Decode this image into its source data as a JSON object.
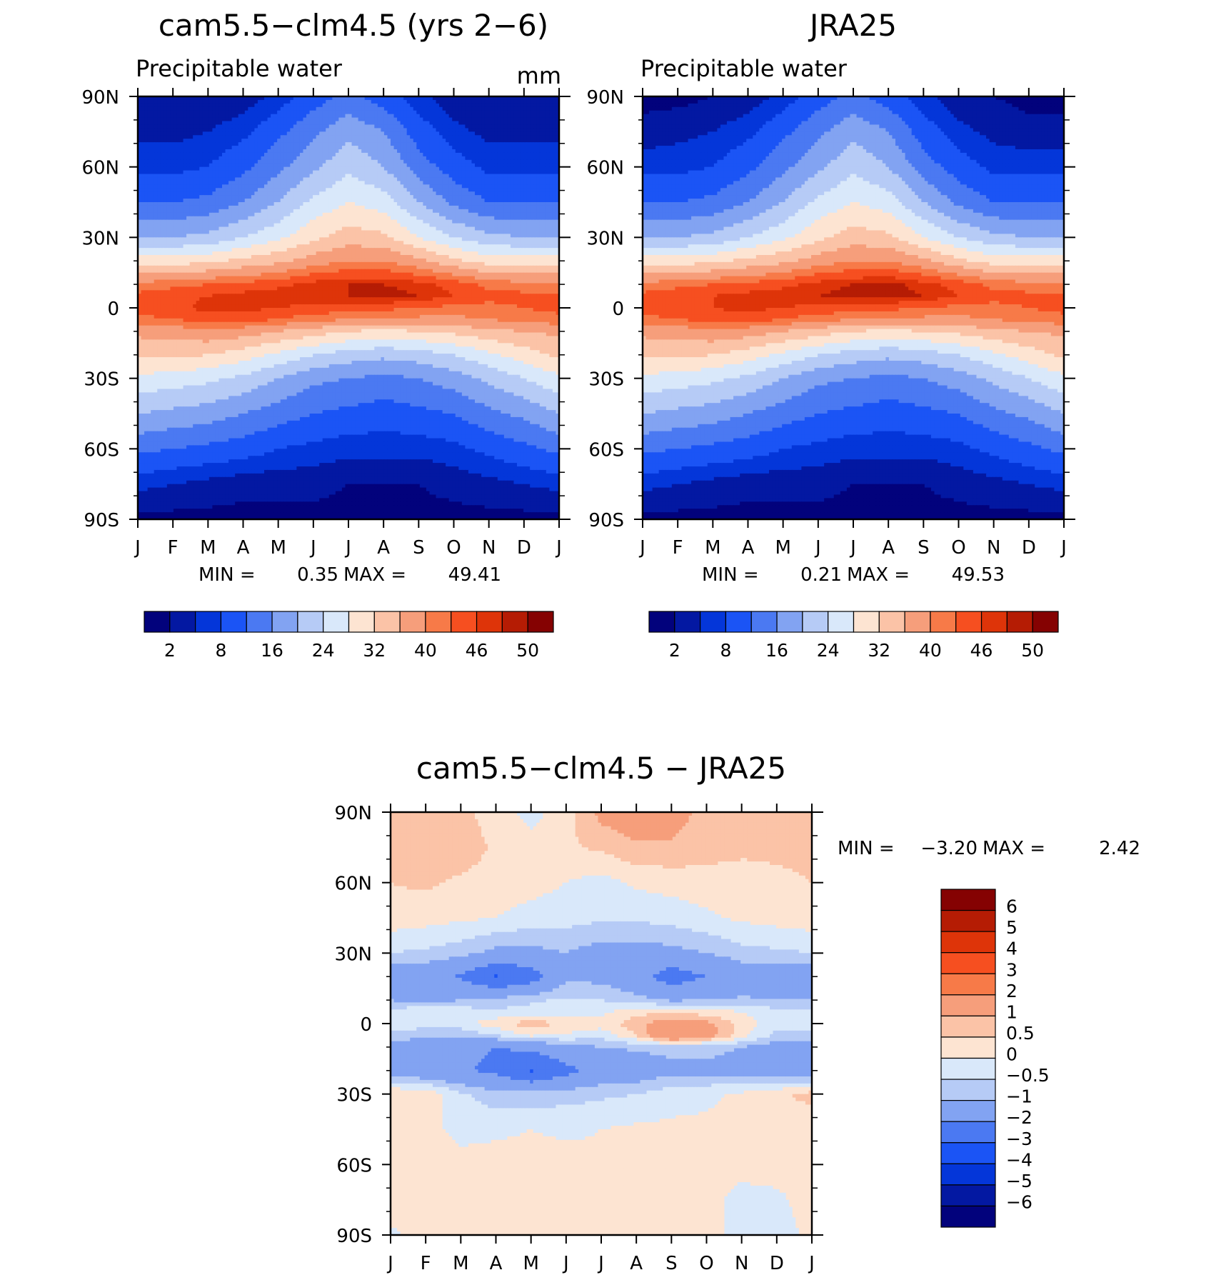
{
  "chart_data": [
    {
      "type": "heatmap",
      "title": "cam5.5−clm4.5 (yrs 2−6)",
      "subtitle": "Precipitable water",
      "units": "mm",
      "x_categories": [
        "J",
        "F",
        "M",
        "A",
        "M",
        "J",
        "J",
        "A",
        "S",
        "O",
        "N",
        "D",
        "J"
      ],
      "y_ticks": [
        "90N",
        "60N",
        "30N",
        "0",
        "30S",
        "60S",
        "90S"
      ],
      "latitudes": [
        90,
        75,
        60,
        45,
        30,
        20,
        10,
        5,
        0,
        -5,
        -10,
        -20,
        -30,
        -45,
        -60,
        -75,
        -90
      ],
      "values": [
        [
          2,
          2,
          2,
          3,
          6,
          10,
          13,
          10,
          6,
          3,
          2,
          2,
          2
        ],
        [
          4,
          4,
          5,
          7,
          11,
          15,
          19,
          16,
          10,
          6,
          4,
          4,
          4
        ],
        [
          7,
          7,
          8,
          11,
          15,
          19,
          23,
          20,
          14,
          10,
          7,
          7,
          7
        ],
        [
          12,
          12,
          13,
          16,
          20,
          25,
          28,
          26,
          20,
          15,
          12,
          12,
          12
        ],
        [
          20,
          20,
          21,
          24,
          27,
          31,
          34,
          33,
          28,
          24,
          21,
          20,
          20
        ],
        [
          30,
          30,
          31,
          33,
          35,
          38,
          40,
          40,
          37,
          33,
          30,
          30,
          30
        ],
        [
          41,
          42,
          43,
          44,
          45,
          47,
          48,
          48,
          47,
          45,
          42,
          41,
          41
        ],
        [
          44,
          45,
          46,
          47,
          48,
          48,
          48,
          49,
          48,
          46,
          44,
          44,
          44
        ],
        [
          44,
          45,
          47,
          47,
          46,
          45,
          45,
          44,
          43,
          42,
          42,
          43,
          44
        ],
        [
          42,
          43,
          44,
          44,
          43,
          41,
          40,
          39,
          39,
          39,
          40,
          41,
          42
        ],
        [
          37,
          38,
          39,
          38,
          36,
          34,
          32,
          31,
          32,
          33,
          35,
          36,
          37
        ],
        [
          33,
          33,
          32,
          30,
          27,
          24,
          22,
          21,
          22,
          24,
          27,
          30,
          33
        ],
        [
          27,
          26,
          25,
          23,
          20,
          17,
          16,
          15,
          16,
          18,
          21,
          24,
          27
        ],
        [
          20,
          19,
          18,
          16,
          14,
          12,
          11,
          10,
          11,
          12,
          15,
          17,
          20
        ],
        [
          13,
          12,
          11,
          10,
          8,
          7,
          6,
          6,
          6,
          7,
          9,
          11,
          13
        ],
        [
          6,
          5,
          4,
          3,
          3,
          3,
          2,
          2,
          2,
          3,
          4,
          5,
          6
        ],
        [
          1,
          1,
          1,
          1,
          1,
          1,
          1,
          1,
          1,
          1,
          1,
          1,
          1
        ]
      ],
      "stats": {
        "min_label": "MIN =",
        "min": "0.35",
        "max_label": "MAX =",
        "max": "49.41"
      },
      "colorbar_labels": [
        "2",
        "8",
        "16",
        "24",
        "32",
        "40",
        "46",
        "50"
      ]
    },
    {
      "type": "heatmap",
      "title": "JRA25",
      "subtitle": "Precipitable water",
      "x_categories": [
        "J",
        "F",
        "M",
        "A",
        "M",
        "J",
        "J",
        "A",
        "S",
        "O",
        "N",
        "D",
        "J"
      ],
      "y_ticks": [
        "90N",
        "60N",
        "30N",
        "0",
        "30S",
        "60S",
        "90S"
      ],
      "latitudes": [
        90,
        75,
        60,
        45,
        30,
        20,
        10,
        5,
        0,
        -5,
        -10,
        -20,
        -30,
        -45,
        -60,
        -75,
        -90
      ],
      "values": [
        [
          1,
          1,
          2,
          3,
          6,
          10,
          13,
          10,
          6,
          3,
          2,
          1,
          1
        ],
        [
          3,
          4,
          5,
          7,
          11,
          15,
          19,
          16,
          10,
          6,
          4,
          3,
          3
        ],
        [
          7,
          7,
          8,
          11,
          15,
          19,
          23,
          20,
          14,
          10,
          7,
          7,
          7
        ],
        [
          12,
          12,
          13,
          16,
          20,
          25,
          28,
          26,
          20,
          15,
          12,
          12,
          12
        ],
        [
          20,
          20,
          21,
          24,
          27,
          31,
          34,
          33,
          28,
          24,
          21,
          20,
          20
        ],
        [
          30,
          30,
          31,
          33,
          35,
          38,
          40,
          40,
          37,
          33,
          30,
          30,
          30
        ],
        [
          41,
          42,
          43,
          44,
          45,
          47,
          48,
          49,
          47,
          45,
          42,
          41,
          41
        ],
        [
          44,
          45,
          46,
          47,
          48,
          48,
          49,
          49,
          48,
          46,
          44,
          44,
          44
        ],
        [
          44,
          45,
          46,
          47,
          46,
          45,
          45,
          44,
          43,
          42,
          42,
          43,
          44
        ],
        [
          42,
          43,
          44,
          44,
          43,
          41,
          40,
          39,
          39,
          39,
          40,
          41,
          42
        ],
        [
          37,
          38,
          39,
          38,
          36,
          34,
          32,
          31,
          32,
          33,
          35,
          36,
          37
        ],
        [
          33,
          33,
          32,
          30,
          27,
          24,
          22,
          21,
          22,
          24,
          27,
          30,
          33
        ],
        [
          27,
          26,
          25,
          23,
          20,
          17,
          16,
          15,
          16,
          18,
          21,
          24,
          27
        ],
        [
          20,
          19,
          18,
          16,
          14,
          12,
          11,
          10,
          11,
          12,
          15,
          17,
          20
        ],
        [
          13,
          12,
          11,
          10,
          8,
          7,
          6,
          6,
          6,
          7,
          9,
          11,
          13
        ],
        [
          6,
          5,
          4,
          3,
          3,
          3,
          2,
          2,
          2,
          3,
          4,
          5,
          6
        ],
        [
          1,
          1,
          1,
          1,
          1,
          1,
          1,
          1,
          1,
          1,
          1,
          1,
          1
        ]
      ],
      "stats": {
        "min_label": "MIN =",
        "min": "0.21",
        "max_label": "MAX =",
        "max": "49.53"
      },
      "colorbar_labels": [
        "2",
        "8",
        "16",
        "24",
        "32",
        "40",
        "46",
        "50"
      ]
    },
    {
      "type": "heatmap",
      "title": "cam5.5−clm4.5 − JRA25",
      "x_categories": [
        "J",
        "F",
        "M",
        "A",
        "M",
        "J",
        "J",
        "A",
        "S",
        "O",
        "N",
        "D",
        "J"
      ],
      "y_ticks": [
        "90N",
        "60N",
        "30N",
        "0",
        "30S",
        "60S",
        "90S"
      ],
      "latitudes": [
        90,
        75,
        60,
        45,
        30,
        20,
        10,
        5,
        0,
        -5,
        -10,
        -20,
        -30,
        -45,
        -60,
        -75,
        -90
      ],
      "values": [
        [
          0.7,
          0.8,
          0.6,
          0.3,
          -0.2,
          0.3,
          1.2,
          1.5,
          1.3,
          0.8,
          0.6,
          0.7,
          0.7
        ],
        [
          0.6,
          0.8,
          0.8,
          0.4,
          0.2,
          0.4,
          0.6,
          0.9,
          0.9,
          0.7,
          0.6,
          0.6,
          0.6
        ],
        [
          0.5,
          0.6,
          0.4,
          0.3,
          0.2,
          0,
          -0.2,
          0.1,
          0.2,
          0.3,
          0.3,
          0.4,
          0.5
        ],
        [
          0.3,
          0.2,
          0.1,
          0,
          -0.2,
          -0.3,
          -0.4,
          -0.4,
          -0.3,
          -0.1,
          0.1,
          0.2,
          0.3
        ],
        [
          -0.5,
          -0.6,
          -0.8,
          -1.2,
          -1.2,
          -1.0,
          -1.3,
          -1.3,
          -1.2,
          -1.0,
          -0.7,
          -0.6,
          -0.5
        ],
        [
          -1.5,
          -1.6,
          -2.1,
          -3.1,
          -2.5,
          -1.2,
          -1.2,
          -1.6,
          -2.5,
          -2.0,
          -1.5,
          -1.5,
          -1.5
        ],
        [
          -1.0,
          -1.3,
          -1.0,
          -0.8,
          -0.6,
          -0.4,
          -0.5,
          -0.8,
          -1.1,
          -1.0,
          -0.9,
          -1.0,
          -1.0
        ],
        [
          -0.3,
          0,
          -0.2,
          -0.4,
          -0.3,
          -0.2,
          -0.1,
          0.3,
          0.4,
          0.2,
          0,
          -0.3,
          -0.3
        ],
        [
          -0.3,
          -0.3,
          -0.2,
          0.3,
          0.8,
          0.4,
          0.2,
          0.8,
          1.5,
          1.2,
          0.3,
          -0.4,
          -0.3
        ],
        [
          -0.6,
          -0.8,
          -0.9,
          -0.5,
          0.1,
          -0.1,
          -0.3,
          0.5,
          2.1,
          1.4,
          0.2,
          -0.6,
          -0.6
        ],
        [
          -1.4,
          -1.7,
          -1.8,
          -2.0,
          -1.8,
          -1.2,
          -1.0,
          -0.9,
          -0.8,
          -0.8,
          -1.0,
          -1.4,
          -1.4
        ],
        [
          -1.6,
          -1.7,
          -1.9,
          -2.2,
          -3.1,
          -2.3,
          -1.6,
          -1.5,
          -1.2,
          -1.2,
          -1.3,
          -1.5,
          -1.6
        ],
        [
          0.5,
          0.4,
          -0.4,
          -0.8,
          -0.8,
          -0.7,
          -0.6,
          -0.5,
          -0.2,
          -0.1,
          0.1,
          0.4,
          0.7
        ],
        [
          0.2,
          0.1,
          -0.1,
          -0.1,
          0,
          -0.1,
          0,
          0.1,
          0.1,
          0.1,
          0.1,
          0.1,
          0.1
        ],
        [
          0.2,
          0.2,
          0.1,
          0.2,
          0.2,
          0.2,
          0.1,
          0.2,
          0.2,
          0.1,
          0.1,
          0.2,
          0.2
        ],
        [
          0.3,
          0.3,
          0.2,
          0.2,
          0.2,
          0.2,
          0.2,
          0.3,
          0.2,
          0.1,
          -0.1,
          -0.1,
          0.2
        ],
        [
          -0.1,
          0.2,
          0.2,
          0.2,
          0.2,
          0.2,
          0.2,
          0.2,
          0.2,
          0.2,
          -0.2,
          -0.2,
          0.1
        ]
      ],
      "stats": {
        "min_label": "MIN =",
        "min": "−3.20",
        "max_label": "MAX =",
        "max": "2.42"
      },
      "colorbar_labels": [
        "6",
        "5",
        "4",
        "3",
        "2",
        "1",
        "0.5",
        "0",
        "−0.5",
        "−1",
        "−2",
        "−3",
        "−4",
        "−5",
        "−6"
      ]
    }
  ],
  "colorscales": {
    "abs_levels": [
      2,
      5,
      8,
      12,
      16,
      20,
      24,
      28,
      32,
      36,
      40,
      43,
      46,
      48,
      50
    ],
    "abs_colors": [
      "#02027c",
      "#0318a2",
      "#0436d9",
      "#1b54f5",
      "#4b79f2",
      "#82a3f2",
      "#b6cbf6",
      "#d9e8fa",
      "#fde4d2",
      "#fbc3a7",
      "#f69e7b",
      "#f77a48",
      "#f64f20",
      "#de3409",
      "#b51c04",
      "#850202"
    ],
    "diff_levels": [
      -6,
      -5,
      -4,
      -3,
      -2,
      -1,
      -0.5,
      0,
      0.5,
      1,
      2,
      3,
      4,
      5,
      6
    ],
    "diff_colors": [
      "#02027c",
      "#0318a2",
      "#0436d9",
      "#1b54f5",
      "#4b79f2",
      "#82a3f2",
      "#b6cbf6",
      "#d9e8fa",
      "#fde4d2",
      "#fbc3a7",
      "#f69e7b",
      "#f77a48",
      "#f64f20",
      "#de3409",
      "#b51c04",
      "#850202"
    ]
  }
}
